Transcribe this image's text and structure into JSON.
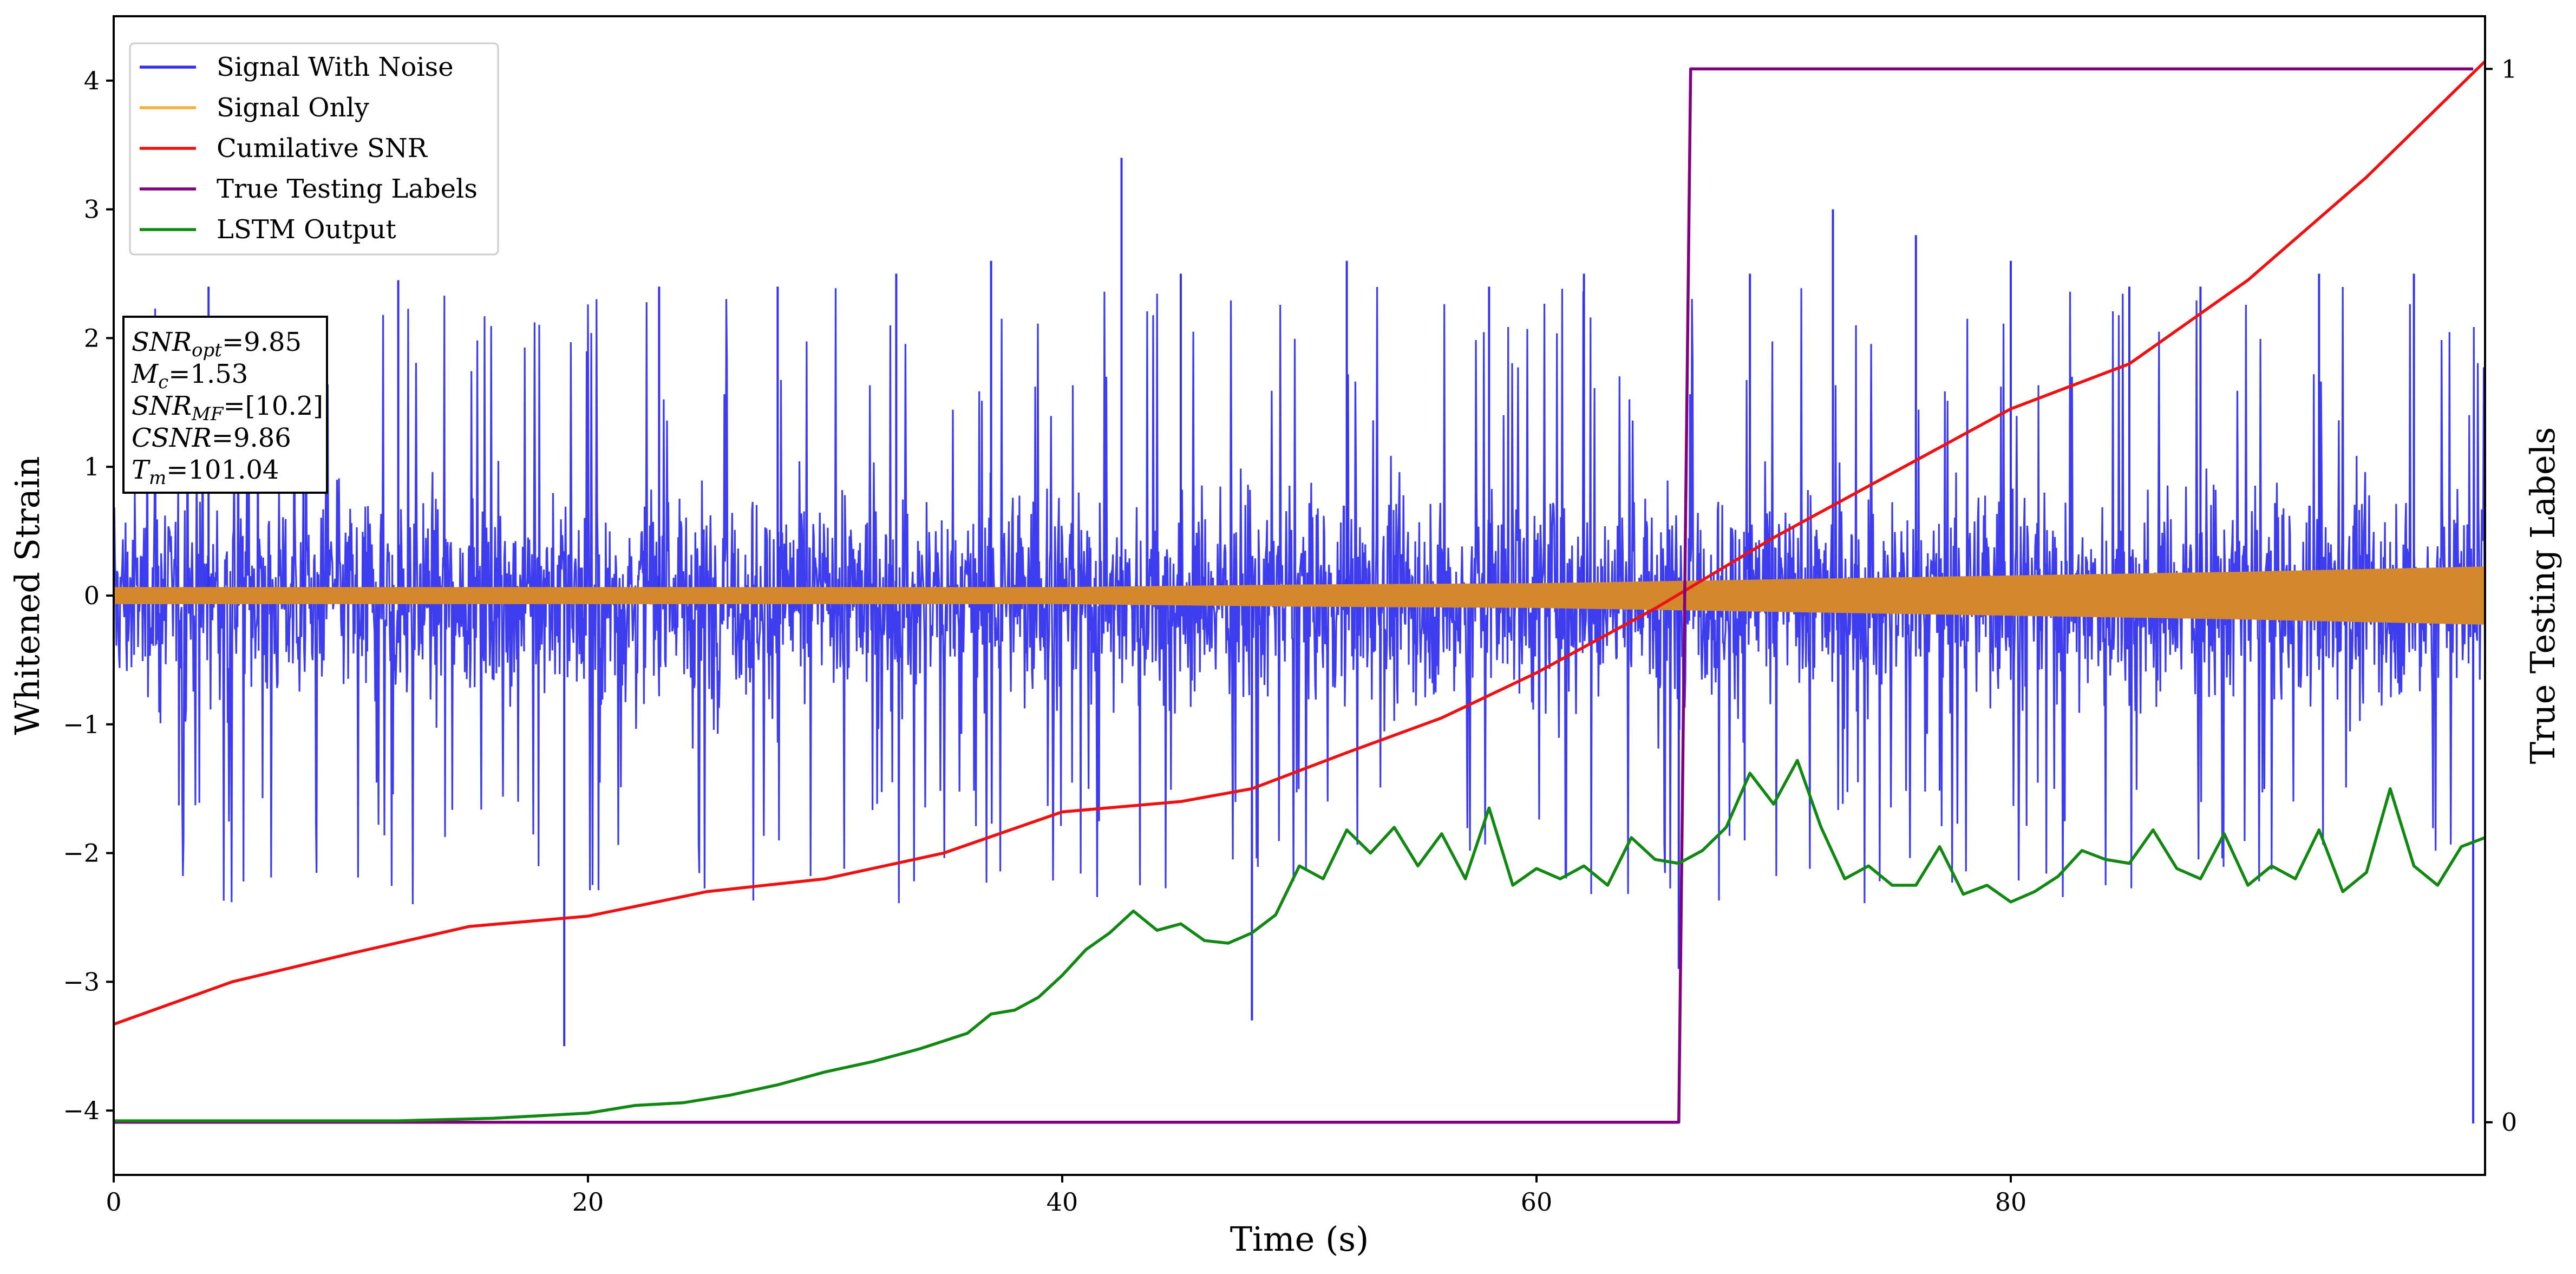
{
  "chart_data": {
    "type": "line",
    "xlabel": "Time (s)",
    "ylabel": "Whitened Strain",
    "y2label": "True Testing Labels",
    "xlim": [
      0,
      100
    ],
    "ylim": [
      -4.5,
      4.5
    ],
    "y2lim": [
      -0.05,
      1.05
    ],
    "xticks": [
      0,
      20,
      40,
      60,
      80
    ],
    "yticks": [
      -4,
      -3,
      -2,
      -1,
      0,
      1,
      2,
      3,
      4
    ],
    "y2ticks": [
      0,
      1
    ],
    "legend_position": "top-left",
    "legend": [
      {
        "name": "Signal With Noise",
        "color": "#3333ee"
      },
      {
        "name": "Signal Only",
        "color": "#f5b041"
      },
      {
        "name": "Cumilative SNR",
        "color": "#ee1111"
      },
      {
        "name": "True Testing Labels",
        "color": "#800080"
      },
      {
        "name": "LSTM Output",
        "color": "#118811"
      }
    ],
    "annotation": [
      {
        "base": "SNR",
        "sub": "opt",
        "value": "=9.85"
      },
      {
        "base": "M",
        "sub": "c",
        "value": "=1.53"
      },
      {
        "base": "SNR",
        "sub": "MF",
        "value": "=[10.2]"
      },
      {
        "base": "CSNR",
        "sub": "",
        "value": "=9.86"
      },
      {
        "base": "T",
        "sub": "m",
        "value": "=101.04"
      }
    ],
    "series": [
      {
        "name": "Signal With Noise",
        "color": "#3333ee",
        "note": "dense noise band",
        "envelope_x": [
          0,
          10,
          20,
          30,
          40,
          50,
          60,
          70,
          80,
          90,
          100
        ],
        "envelope_upper": [
          1.4,
          1.4,
          1.4,
          1.4,
          1.4,
          1.4,
          1.4,
          1.4,
          1.4,
          1.4,
          1.4
        ],
        "envelope_lower": [
          -1.5,
          -1.5,
          -1.5,
          -1.5,
          -1.5,
          -1.5,
          -1.5,
          -1.5,
          -1.5,
          -1.5,
          -1.5
        ],
        "peaks_x": [
          4,
          8,
          12,
          19,
          23,
          28,
          33,
          37,
          42.5,
          45,
          48,
          52,
          58,
          62,
          66,
          69,
          72.5,
          76,
          80,
          85,
          88,
          93,
          97,
          99.5
        ],
        "peaks_y": [
          2.4,
          2.1,
          2.45,
          -3.5,
          2.4,
          2.4,
          2.5,
          2.6,
          3.4,
          2.5,
          -3.3,
          2.6,
          2.4,
          2.5,
          -2.9,
          2.5,
          3.0,
          2.8,
          2.6,
          2.4,
          2.4,
          2.5,
          2.5,
          -4.1
        ]
      },
      {
        "name": "Signal Only",
        "color": "#d4882e",
        "x": [
          0,
          10,
          20,
          30,
          40,
          50,
          60,
          70,
          80,
          90,
          100
        ],
        "amplitude": [
          0.06,
          0.06,
          0.06,
          0.06,
          0.06,
          0.08,
          0.09,
          0.12,
          0.15,
          0.18,
          0.22
        ]
      },
      {
        "name": "Cumilative SNR",
        "color": "#ee1111",
        "axis": "left",
        "x": [
          0,
          5,
          10,
          15,
          20,
          25,
          30,
          35,
          40,
          45,
          48,
          52,
          56,
          60,
          65,
          70,
          75,
          80,
          85,
          90,
          95,
          100
        ],
        "y": [
          -3.33,
          -3.0,
          -2.78,
          -2.57,
          -2.49,
          -2.3,
          -2.2,
          -2.0,
          -1.68,
          -1.6,
          -1.5,
          -1.22,
          -0.95,
          -0.6,
          -0.1,
          0.45,
          0.95,
          1.45,
          1.8,
          2.45,
          3.25,
          4.15
        ]
      },
      {
        "name": "True Testing Labels",
        "color": "#800080",
        "axis": "right",
        "x": [
          0,
          66.0,
          66.5,
          99.5
        ],
        "y": [
          0,
          0,
          1,
          1
        ]
      },
      {
        "name": "LSTM Output",
        "color": "#118811",
        "axis": "left",
        "x": [
          0,
          12,
          16,
          18,
          20,
          22,
          24,
          26,
          28,
          30,
          32,
          34,
          36,
          37,
          38,
          39,
          40,
          41,
          42,
          43,
          44,
          45,
          46,
          47,
          48,
          49,
          50,
          51,
          52,
          53,
          54,
          55,
          56,
          57,
          58,
          59,
          60,
          61,
          62,
          63,
          64,
          65,
          66,
          67,
          68,
          69,
          70,
          71,
          72,
          73,
          74,
          75,
          76,
          77,
          78,
          79,
          80,
          81,
          82,
          83,
          84,
          85,
          86,
          87,
          88,
          89,
          90,
          91,
          92,
          93,
          94,
          95,
          96,
          97,
          98,
          99,
          100
        ],
        "y": [
          -4.08,
          -4.08,
          -4.06,
          -4.04,
          -4.02,
          -3.96,
          -3.94,
          -3.88,
          -3.8,
          -3.7,
          -3.62,
          -3.52,
          -3.4,
          -3.25,
          -3.22,
          -3.12,
          -2.95,
          -2.75,
          -2.62,
          -2.45,
          -2.6,
          -2.55,
          -2.68,
          -2.7,
          -2.62,
          -2.48,
          -2.1,
          -2.2,
          -1.82,
          -2.0,
          -1.8,
          -2.1,
          -1.85,
          -2.2,
          -1.65,
          -2.25,
          -2.12,
          -2.2,
          -2.1,
          -2.25,
          -1.88,
          -2.05,
          -2.08,
          -1.98,
          -1.8,
          -1.38,
          -1.62,
          -1.28,
          -1.8,
          -2.2,
          -2.1,
          -2.25,
          -2.25,
          -1.95,
          -2.32,
          -2.25,
          -2.38,
          -2.3,
          -2.18,
          -1.98,
          -2.05,
          -2.08,
          -1.82,
          -2.12,
          -2.2,
          -1.85,
          -2.25,
          -2.1,
          -2.2,
          -1.82,
          -2.3,
          -2.15,
          -1.5,
          -2.1,
          -2.25,
          -1.95,
          -1.88
        ]
      }
    ]
  }
}
